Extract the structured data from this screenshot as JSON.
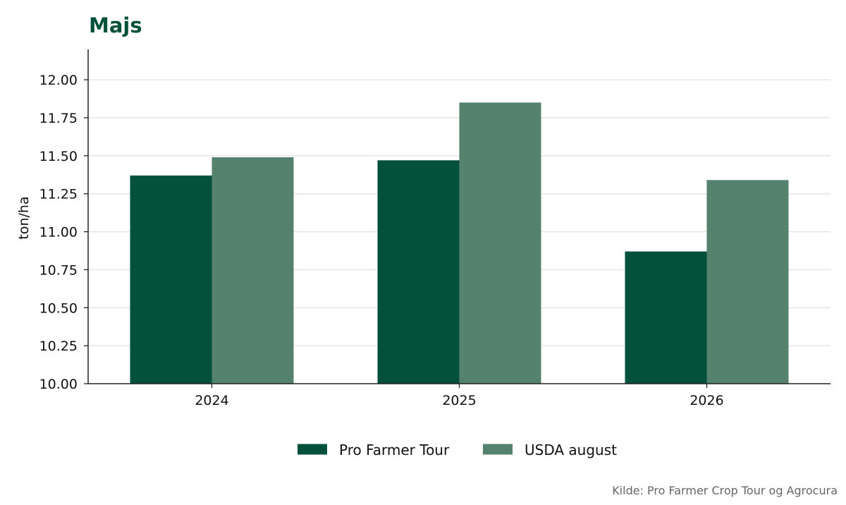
{
  "chart_data": {
    "type": "bar",
    "title": "Majs",
    "xlabel": "",
    "ylabel": "ton/ha",
    "categories": [
      "2024",
      "2025",
      "2026"
    ],
    "series": [
      {
        "name": "Pro Farmer Tour",
        "values": [
          11.37,
          11.47,
          10.87
        ],
        "color": "#03513a"
      },
      {
        "name": "USDA august",
        "values": [
          11.49,
          11.85,
          11.34
        ],
        "color": "#54826f"
      }
    ],
    "ylim": [
      10.0,
      12.2
    ],
    "yticks": [
      "10.00",
      "10.25",
      "10.50",
      "10.75",
      "11.00",
      "11.25",
      "11.50",
      "11.75",
      "12.00"
    ],
    "grid": "horizontal",
    "legend_position": "bottom-center",
    "source": "Kilde: Pro Farmer Crop Tour og Agrocura"
  },
  "colors": {
    "title": "#03513a",
    "grid": "#e3e3e3",
    "axis": "#222222",
    "source": "#666666"
  }
}
